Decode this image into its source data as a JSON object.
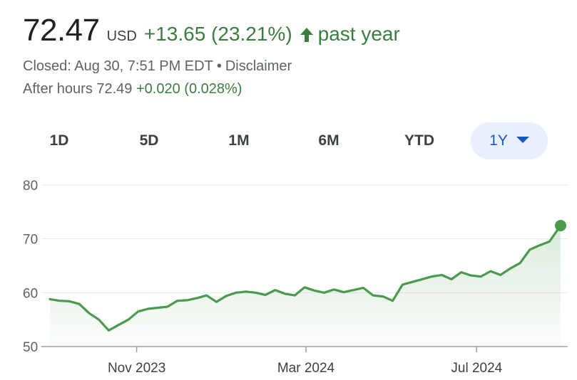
{
  "quote": {
    "price": "72.47",
    "currency": "USD",
    "change": "+13.65 (23.21%)",
    "period": "past year",
    "status": "Closed: Aug 30, 7:51 PM EDT",
    "separator": "•",
    "disclaimer": "Disclaimer",
    "after_hours_label": "After hours 72.49",
    "after_hours_change": "+0.020 (0.028%)",
    "arrow_icon": "arrow-up-icon",
    "positive_color": "#3b7d3f"
  },
  "tabs": [
    {
      "label": "1D",
      "active": false
    },
    {
      "label": "5D",
      "active": false
    },
    {
      "label": "1M",
      "active": false
    },
    {
      "label": "6M",
      "active": false
    },
    {
      "label": "YTD",
      "active": false
    },
    {
      "label": "1Y",
      "active": true
    }
  ],
  "dropdown_icon": "caret-down-icon",
  "chart_data": {
    "type": "area",
    "title": "",
    "xlabel": "",
    "ylabel": "",
    "ylim": [
      50,
      80
    ],
    "yticks": [
      "80",
      "70",
      "60",
      "50"
    ],
    "xticks": [
      "Nov 2023",
      "Mar 2024",
      "Jul 2024"
    ],
    "xtick_dates": [
      "2023-11-01",
      "2024-03-01",
      "2024-07-01"
    ],
    "xlim": [
      "2023-08-31",
      "2024-08-30"
    ],
    "grid": true,
    "line_color": "#4a9a4e",
    "series": [
      {
        "x": [
          "2023-08-31",
          "2023-09-07",
          "2023-09-14",
          "2023-09-21",
          "2023-09-28",
          "2023-10-05",
          "2023-10-12",
          "2023-10-19",
          "2023-10-26",
          "2023-11-02",
          "2023-11-09",
          "2023-11-16",
          "2023-11-23",
          "2023-11-30",
          "2023-12-07",
          "2023-12-14",
          "2023-12-21",
          "2023-12-28",
          "2024-01-04",
          "2024-01-11",
          "2024-01-18",
          "2024-01-25",
          "2024-02-01",
          "2024-02-08",
          "2024-02-15",
          "2024-02-22",
          "2024-02-29",
          "2024-03-07",
          "2024-03-14",
          "2024-03-21",
          "2024-03-28",
          "2024-04-04",
          "2024-04-11",
          "2024-04-18",
          "2024-04-25",
          "2024-05-02",
          "2024-05-09",
          "2024-05-16",
          "2024-05-23",
          "2024-05-30",
          "2024-06-06",
          "2024-06-13",
          "2024-06-20",
          "2024-06-27",
          "2024-07-04",
          "2024-07-11",
          "2024-07-18",
          "2024-07-25",
          "2024-08-01",
          "2024-08-08",
          "2024-08-15",
          "2024-08-22",
          "2024-08-30"
        ],
        "values": [
          58.8,
          58.5,
          58.4,
          57.9,
          56.2,
          55.0,
          53.0,
          54.0,
          55.0,
          56.5,
          57.0,
          57.2,
          57.4,
          58.5,
          58.6,
          59.0,
          59.5,
          58.3,
          59.4,
          60.0,
          60.2,
          60.0,
          59.6,
          60.5,
          59.8,
          59.5,
          61.0,
          60.4,
          60.0,
          60.6,
          60.1,
          60.5,
          60.9,
          59.5,
          59.3,
          58.5,
          61.5,
          62.0,
          62.5,
          63.0,
          63.3,
          62.5,
          63.8,
          63.2,
          63.0,
          64.0,
          63.3,
          64.5,
          65.5,
          68.0,
          68.8,
          69.5,
          72.47
        ]
      }
    ]
  }
}
